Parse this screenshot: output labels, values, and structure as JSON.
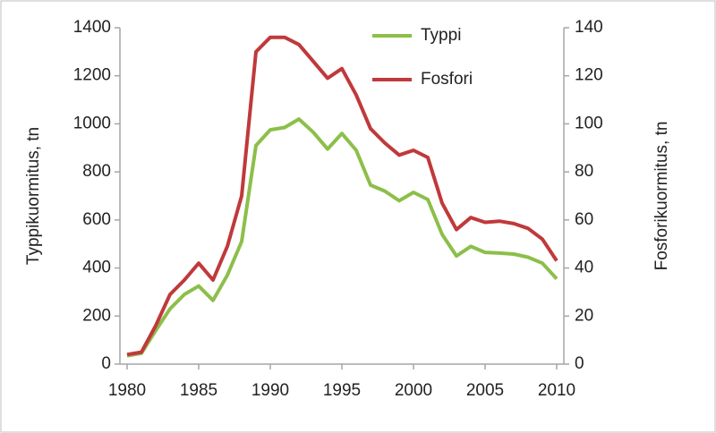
{
  "chart_data": {
    "type": "line",
    "x": [
      1980,
      1981,
      1982,
      1983,
      1984,
      1985,
      1986,
      1987,
      1988,
      1989,
      1990,
      1991,
      1992,
      1993,
      1994,
      1995,
      1996,
      1997,
      1998,
      1999,
      2000,
      2001,
      2002,
      2003,
      2004,
      2005,
      2006,
      2007,
      2008,
      2009,
      2010
    ],
    "series": [
      {
        "name": "Typpi",
        "color": "#8cbf4a",
        "values": [
          35,
          45,
          140,
          230,
          290,
          325,
          265,
          370,
          510,
          910,
          975,
          985,
          1020,
          965,
          895,
          960,
          890,
          745,
          720,
          680,
          715,
          685,
          540,
          450,
          490,
          465,
          462,
          458,
          445,
          420,
          355
        ]
      },
      {
        "name": "Fosfori",
        "color": "#c0393b",
        "axis": "y2",
        "values": [
          4,
          5,
          16,
          29,
          35,
          42,
          35,
          49,
          70,
          130,
          136,
          136,
          133,
          126,
          119,
          123,
          112,
          98,
          92,
          87,
          89,
          86,
          67,
          56,
          61,
          59,
          59.5,
          58.5,
          56.5,
          52,
          43
        ]
      }
    ],
    "y_label": "Typpikuormitus, tn",
    "y2_label": "Fosforikuormitus, tn",
    "xlim": [
      1979.5,
      2010.5
    ],
    "xticks": [
      1980,
      1985,
      1990,
      1995,
      2000,
      2005,
      2010
    ],
    "ylim": [
      0,
      1400
    ],
    "yticks": [
      0,
      200,
      400,
      600,
      800,
      1000,
      1200,
      1400
    ],
    "y2lim": [
      0,
      140
    ],
    "y2ticks": [
      0,
      20,
      40,
      60,
      80,
      100,
      120,
      140
    ],
    "legend": "top-right",
    "grid": false
  }
}
